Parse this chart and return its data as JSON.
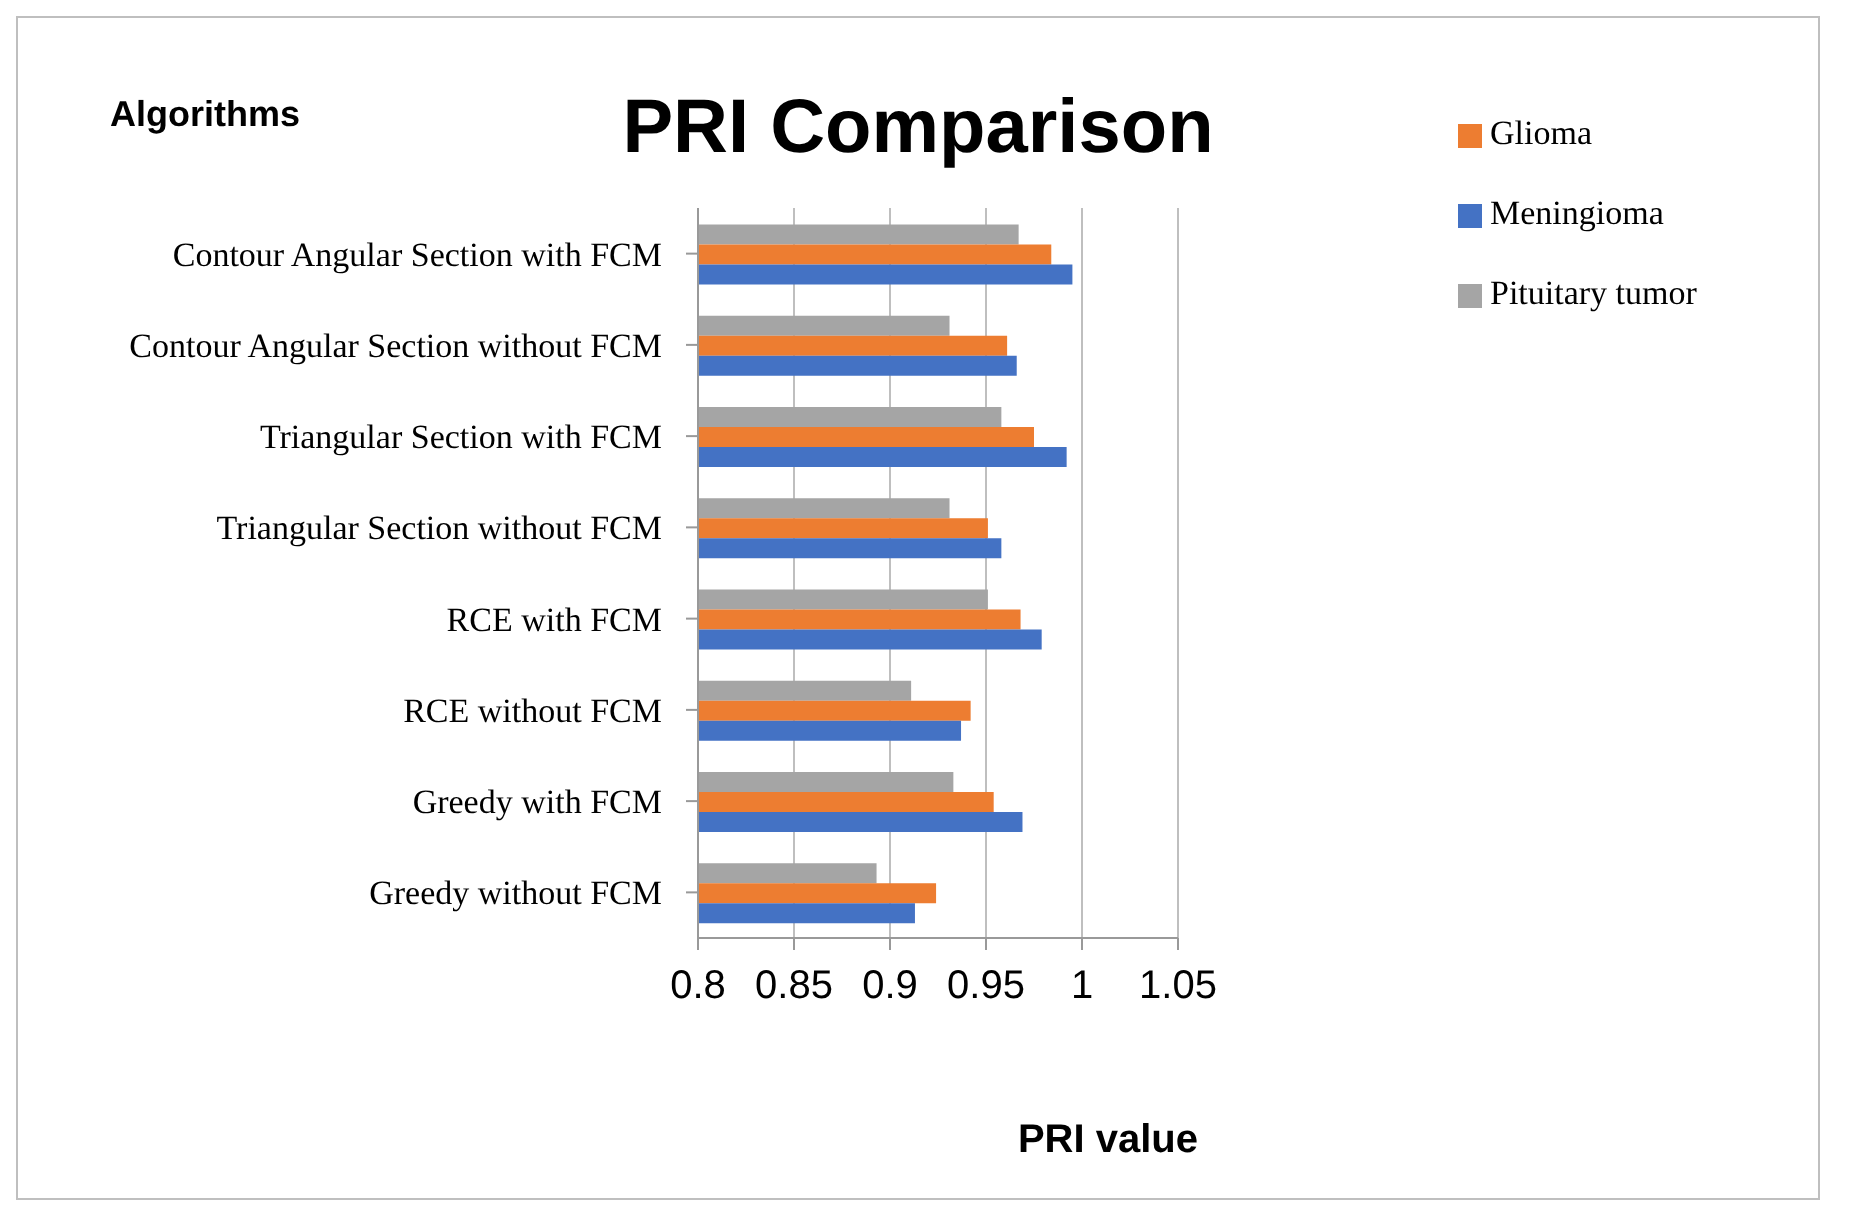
{
  "chart_data": {
    "type": "bar",
    "orientation": "horizontal",
    "title": "PRI Comparison",
    "xlabel": "PRI value",
    "ylabel": "Algorithms",
    "categories": [
      "Contour Angular Section with FCM",
      "Contour Angular Section without FCM",
      "Triangular Section with FCM",
      "Triangular Section without FCM",
      "RCE  with FCM",
      "RCE  without FCM",
      "Greedy with FCM",
      "Greedy  without FCM"
    ],
    "series": [
      {
        "name": "Pituitary tumor",
        "color": "#a5a5a5",
        "values": [
          0.967,
          0.931,
          0.958,
          0.931,
          0.951,
          0.911,
          0.933,
          0.893
        ]
      },
      {
        "name": "Glioma",
        "color": "#ed7d31",
        "values": [
          0.984,
          0.961,
          0.975,
          0.951,
          0.968,
          0.942,
          0.954,
          0.924
        ]
      },
      {
        "name": "Meningioma",
        "color": "#4472c4",
        "values": [
          0.995,
          0.966,
          0.992,
          0.958,
          0.979,
          0.937,
          0.969,
          0.913
        ]
      }
    ],
    "xlim": [
      0.8,
      1.05
    ],
    "xticks": [
      0.8,
      0.85,
      0.9,
      0.95,
      1,
      1.05
    ],
    "grid": "x",
    "legend": "top right"
  }
}
